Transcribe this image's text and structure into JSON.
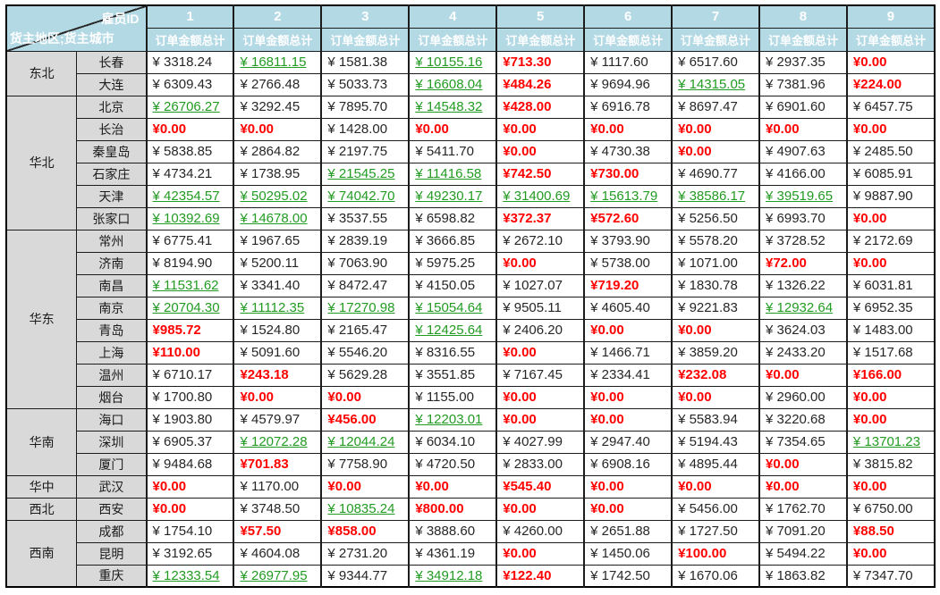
{
  "header": {
    "corner_top_right": "雇员ID",
    "corner_bottom_left": "货主地区;货主城市",
    "column_sublabel": "订单金额总计"
  },
  "colors": {
    "header_bg": "#B3D9E5",
    "header_text": "#FFFFFF",
    "label_bg": "#D9D9D9",
    "value_text": "#262626",
    "low_value_red": "#FF0000",
    "high_value_green": "#229B22",
    "grid_border": "#1C1C1C"
  },
  "chart_data": {
    "type": "table",
    "corner_top_right": "雇员ID",
    "corner_bottom_left": "货主地区;货主城市",
    "columns": [
      "1",
      "2",
      "3",
      "4",
      "5",
      "6",
      "7",
      "8",
      "9"
    ],
    "column_sublabel": "订单金额总计",
    "currency_symbol": "¥",
    "style_legend": {
      "n": "black normal",
      "r": "red bold",
      "g": "green underlined"
    },
    "groups": [
      {
        "region": "东北",
        "cities": [
          {
            "city": "长春",
            "values": [
              3318.24,
              16811.15,
              1581.38,
              10155.16,
              713.3,
              1117.6,
              6517.6,
              2937.35,
              0.0
            ],
            "styles": [
              "n",
              "g",
              "n",
              "g",
              "r",
              "n",
              "n",
              "n",
              "r"
            ]
          },
          {
            "city": "大连",
            "values": [
              6309.43,
              2766.48,
              5033.73,
              16608.04,
              484.26,
              9694.96,
              14315.05,
              7381.96,
              224.0
            ],
            "styles": [
              "n",
              "n",
              "n",
              "g",
              "r",
              "n",
              "g",
              "n",
              "r"
            ]
          }
        ]
      },
      {
        "region": "华北",
        "cities": [
          {
            "city": "北京",
            "values": [
              26706.27,
              3292.45,
              7895.7,
              14548.32,
              428.0,
              6916.78,
              8697.47,
              6901.6,
              6457.75
            ],
            "styles": [
              "g",
              "n",
              "n",
              "g",
              "r",
              "n",
              "n",
              "n",
              "n"
            ]
          },
          {
            "city": "长治",
            "values": [
              0.0,
              0.0,
              1428.0,
              0.0,
              0.0,
              0.0,
              0.0,
              0.0,
              0.0
            ],
            "styles": [
              "r",
              "r",
              "n",
              "r",
              "r",
              "r",
              "r",
              "r",
              "r"
            ]
          },
          {
            "city": "秦皇岛",
            "values": [
              5838.85,
              2864.82,
              2197.75,
              5411.7,
              0.0,
              4730.38,
              0.0,
              4907.63,
              2485.5
            ],
            "styles": [
              "n",
              "n",
              "n",
              "n",
              "r",
              "n",
              "r",
              "n",
              "n"
            ]
          },
          {
            "city": "石家庄",
            "values": [
              4734.21,
              1738.95,
              21545.25,
              11416.58,
              742.5,
              730.0,
              4690.77,
              4166.0,
              6085.91
            ],
            "styles": [
              "n",
              "n",
              "g",
              "g",
              "r",
              "r",
              "n",
              "n",
              "n"
            ]
          },
          {
            "city": "天津",
            "values": [
              42354.57,
              50295.02,
              74042.7,
              49230.17,
              31400.69,
              15613.79,
              38586.17,
              39519.65,
              9887.9
            ],
            "styles": [
              "g",
              "g",
              "g",
              "g",
              "g",
              "g",
              "g",
              "g",
              "n"
            ]
          },
          {
            "city": "张家口",
            "values": [
              10392.69,
              14678.0,
              3537.55,
              6598.82,
              372.37,
              572.6,
              5256.5,
              6993.7,
              0.0
            ],
            "styles": [
              "g",
              "g",
              "n",
              "n",
              "r",
              "r",
              "n",
              "n",
              "r"
            ]
          }
        ]
      },
      {
        "region": "华东",
        "cities": [
          {
            "city": "常州",
            "values": [
              6775.41,
              1967.65,
              2839.19,
              3666.85,
              2672.1,
              3793.9,
              5578.2,
              3728.52,
              2172.69
            ],
            "styles": [
              "n",
              "n",
              "n",
              "n",
              "n",
              "n",
              "n",
              "n",
              "n"
            ]
          },
          {
            "city": "济南",
            "values": [
              8194.9,
              5200.11,
              7063.9,
              5975.25,
              0.0,
              5738.0,
              1071.0,
              72.0,
              0.0
            ],
            "styles": [
              "n",
              "n",
              "n",
              "n",
              "r",
              "n",
              "n",
              "r",
              "r"
            ]
          },
          {
            "city": "南昌",
            "values": [
              11531.62,
              3341.4,
              8472.47,
              4150.05,
              1027.07,
              719.2,
              1830.78,
              1326.22,
              6031.81
            ],
            "styles": [
              "g",
              "n",
              "n",
              "n",
              "n",
              "r",
              "n",
              "n",
              "n"
            ]
          },
          {
            "city": "南京",
            "values": [
              20704.3,
              11112.35,
              17270.98,
              15054.64,
              9505.11,
              4605.4,
              9221.83,
              12932.64,
              6952.35
            ],
            "styles": [
              "g",
              "g",
              "g",
              "g",
              "n",
              "n",
              "n",
              "g",
              "n"
            ]
          },
          {
            "city": "青岛",
            "values": [
              985.72,
              1524.8,
              2165.47,
              12425.64,
              2406.2,
              0.0,
              0.0,
              3624.03,
              1483.0
            ],
            "styles": [
              "r",
              "n",
              "n",
              "g",
              "n",
              "r",
              "r",
              "n",
              "n"
            ]
          },
          {
            "city": "上海",
            "values": [
              110.0,
              5091.6,
              5546.2,
              8316.55,
              0.0,
              1466.71,
              3859.2,
              2433.2,
              1517.68
            ],
            "styles": [
              "r",
              "n",
              "n",
              "n",
              "r",
              "n",
              "n",
              "n",
              "n"
            ]
          },
          {
            "city": "温州",
            "values": [
              6710.17,
              243.18,
              5629.28,
              3551.85,
              7167.45,
              2334.41,
              232.08,
              0.0,
              166.0
            ],
            "styles": [
              "n",
              "r",
              "n",
              "n",
              "n",
              "n",
              "r",
              "r",
              "r"
            ]
          },
          {
            "city": "烟台",
            "values": [
              1700.8,
              0.0,
              0.0,
              1155.0,
              0.0,
              0.0,
              0.0,
              2960.0,
              0.0
            ],
            "styles": [
              "n",
              "r",
              "r",
              "n",
              "r",
              "r",
              "r",
              "n",
              "r"
            ]
          }
        ]
      },
      {
        "region": "华南",
        "cities": [
          {
            "city": "海口",
            "values": [
              1903.8,
              4579.97,
              456.0,
              12203.01,
              0.0,
              0.0,
              5583.94,
              3220.68,
              0.0
            ],
            "styles": [
              "n",
              "n",
              "r",
              "g",
              "r",
              "r",
              "n",
              "n",
              "r"
            ]
          },
          {
            "city": "深圳",
            "values": [
              6905.37,
              12072.28,
              12044.24,
              6034.1,
              4027.99,
              2947.4,
              5194.43,
              7354.65,
              13701.23
            ],
            "styles": [
              "n",
              "g",
              "g",
              "n",
              "n",
              "n",
              "n",
              "n",
              "g"
            ]
          },
          {
            "city": "厦门",
            "values": [
              9484.68,
              701.83,
              7758.9,
              4720.5,
              2833.0,
              6908.16,
              4895.44,
              0.0,
              3815.82
            ],
            "styles": [
              "n",
              "r",
              "n",
              "n",
              "n",
              "n",
              "n",
              "r",
              "n"
            ]
          }
        ]
      },
      {
        "region": "华中",
        "cities": [
          {
            "city": "武汉",
            "values": [
              0.0,
              1170.0,
              0.0,
              0.0,
              545.4,
              0.0,
              0.0,
              0.0,
              0.0
            ],
            "styles": [
              "r",
              "n",
              "r",
              "r",
              "r",
              "r",
              "r",
              "r",
              "r"
            ]
          }
        ]
      },
      {
        "region": "西北",
        "cities": [
          {
            "city": "西安",
            "values": [
              0.0,
              3748.5,
              10835.24,
              800.0,
              0.0,
              0.0,
              5456.0,
              1762.7,
              6750.0
            ],
            "styles": [
              "r",
              "n",
              "g",
              "r",
              "r",
              "r",
              "n",
              "n",
              "n"
            ]
          }
        ]
      },
      {
        "region": "西南",
        "cities": [
          {
            "city": "成都",
            "values": [
              1754.1,
              57.5,
              858.0,
              3888.6,
              4260.0,
              2651.88,
              1727.5,
              7091.2,
              88.5
            ],
            "styles": [
              "n",
              "r",
              "r",
              "n",
              "n",
              "n",
              "n",
              "n",
              "r"
            ]
          },
          {
            "city": "昆明",
            "values": [
              3192.65,
              4604.08,
              2731.2,
              4361.19,
              0.0,
              1450.06,
              100.0,
              5494.22,
              0.0
            ],
            "styles": [
              "n",
              "n",
              "n",
              "n",
              "r",
              "n",
              "r",
              "n",
              "r"
            ]
          },
          {
            "city": "重庆",
            "values": [
              12333.54,
              26977.95,
              9344.77,
              34912.18,
              122.4,
              1742.5,
              1670.06,
              1863.82,
              7347.7
            ],
            "styles": [
              "g",
              "g",
              "n",
              "g",
              "r",
              "n",
              "n",
              "n",
              "n"
            ]
          }
        ]
      }
    ]
  }
}
